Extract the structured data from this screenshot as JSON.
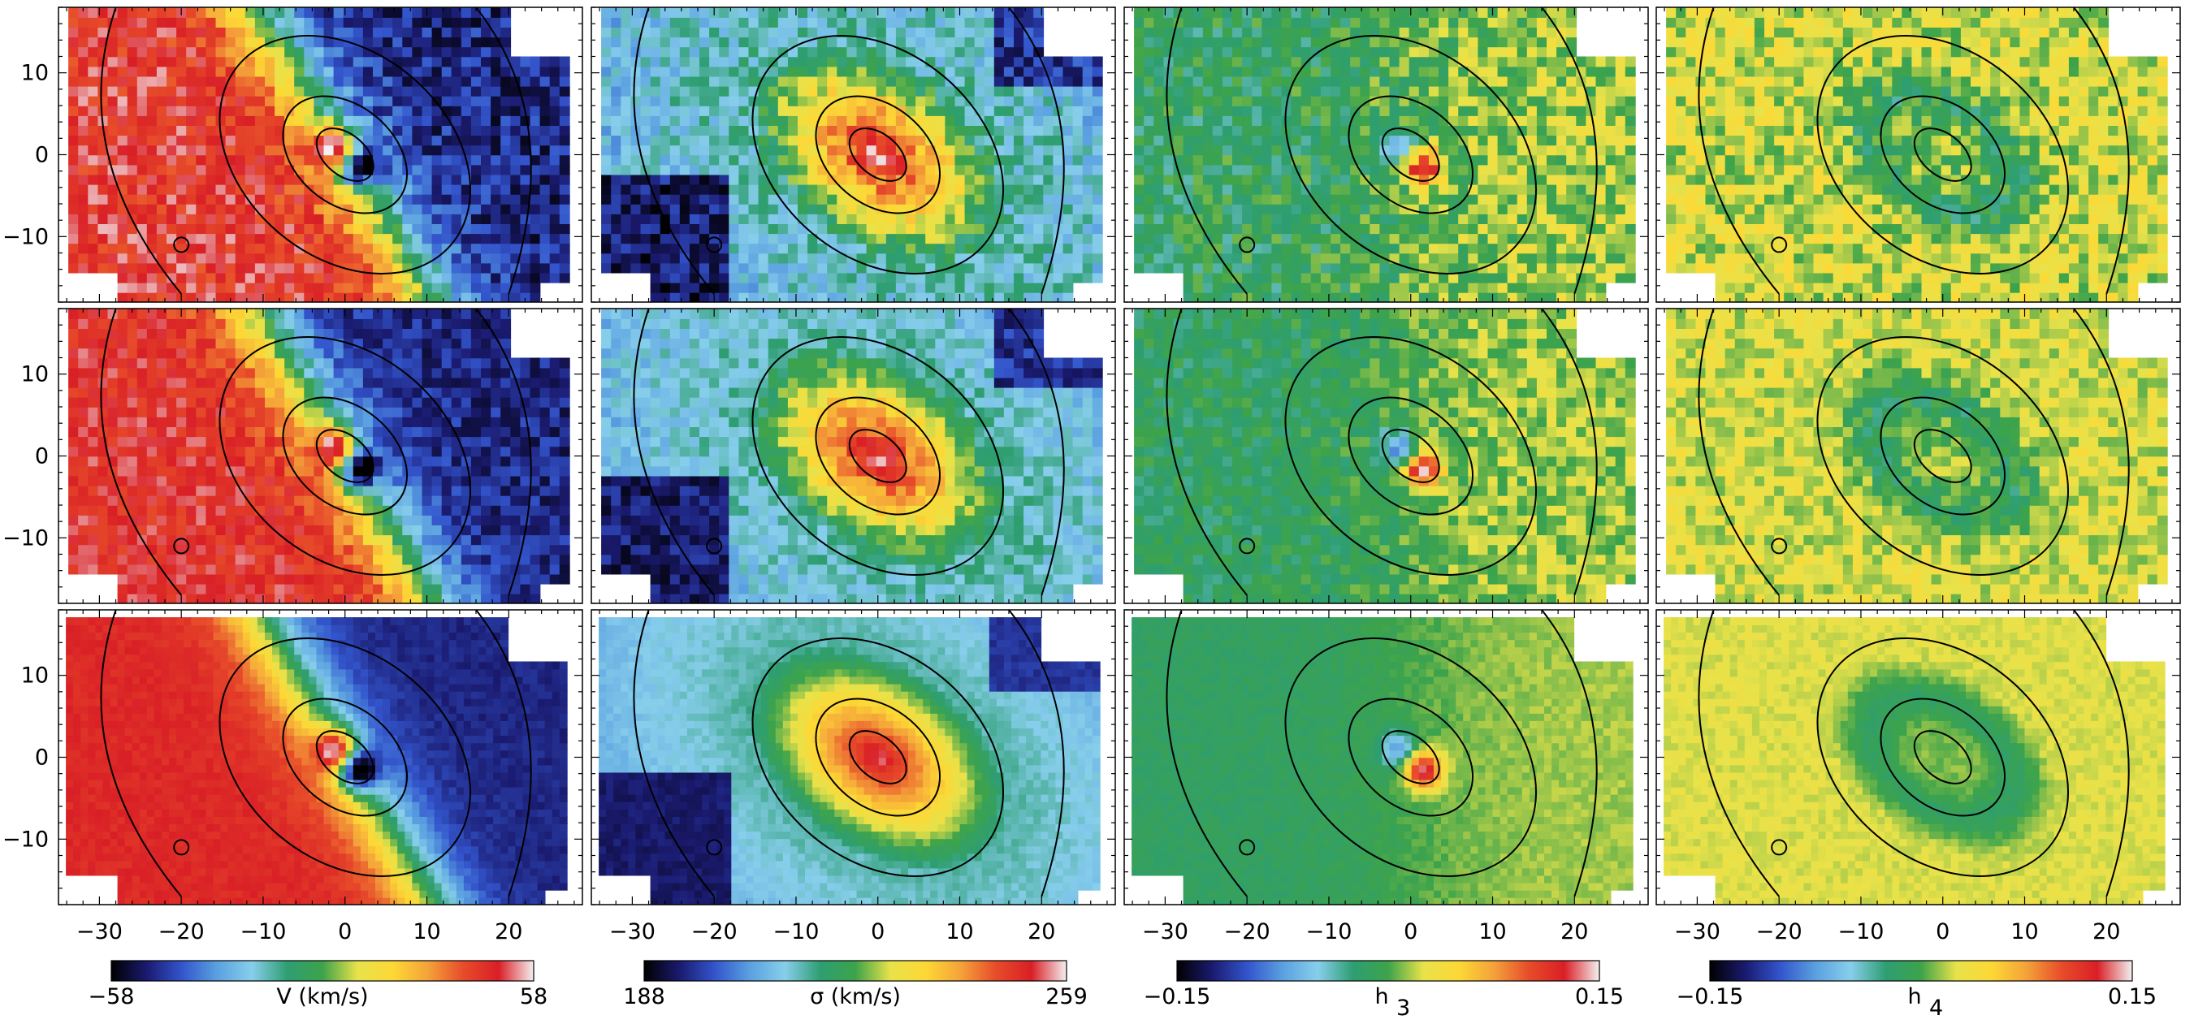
{
  "figure": {
    "rows": 3,
    "cols": 4
  },
  "chart_data": {
    "type": "heatmap",
    "axes": {
      "xlim": [
        -35,
        29
      ],
      "ylim": [
        -18,
        18
      ],
      "xticks": [
        -30,
        -20,
        -10,
        0,
        10,
        20
      ],
      "yticks": [
        -10,
        0,
        10
      ],
      "xtick_labels": [
        "−30",
        "−20",
        "−10",
        "0",
        "10",
        "20"
      ],
      "ytick_labels": [
        "−10",
        "0",
        "10"
      ]
    },
    "columns": [
      {
        "quantity": "V",
        "colorbar_label": "V (km/s)",
        "vmin_label": "−58",
        "vmax_label": "58",
        "range": [
          -58,
          58
        ]
      },
      {
        "quantity": "sigma",
        "colorbar_label": "σ (km/s)",
        "vmin_label": "188",
        "vmax_label": "259",
        "range": [
          188,
          259
        ]
      },
      {
        "quantity": "h3",
        "colorbar_label": "h",
        "colorbar_label_sub": "3",
        "vmin_label": "−0.15",
        "vmax_label": "0.15",
        "range": [
          -0.15,
          0.15
        ]
      },
      {
        "quantity": "h4",
        "colorbar_label": "h",
        "colorbar_label_sub": "4",
        "vmin_label": "−0.15",
        "vmax_label": "0.15",
        "range": [
          -0.15,
          0.15
        ]
      }
    ],
    "colormap": [
      "#000000",
      "#1a1a6e",
      "#3355cc",
      "#5aa0e0",
      "#87ceeb",
      "#2e9e72",
      "#3da34b",
      "#e8e24a",
      "#fdd835",
      "#f4a23a",
      "#e74c2a",
      "#d91f26",
      "#f4f0f0"
    ],
    "contours_isophote_levels": 4,
    "grid": false
  }
}
